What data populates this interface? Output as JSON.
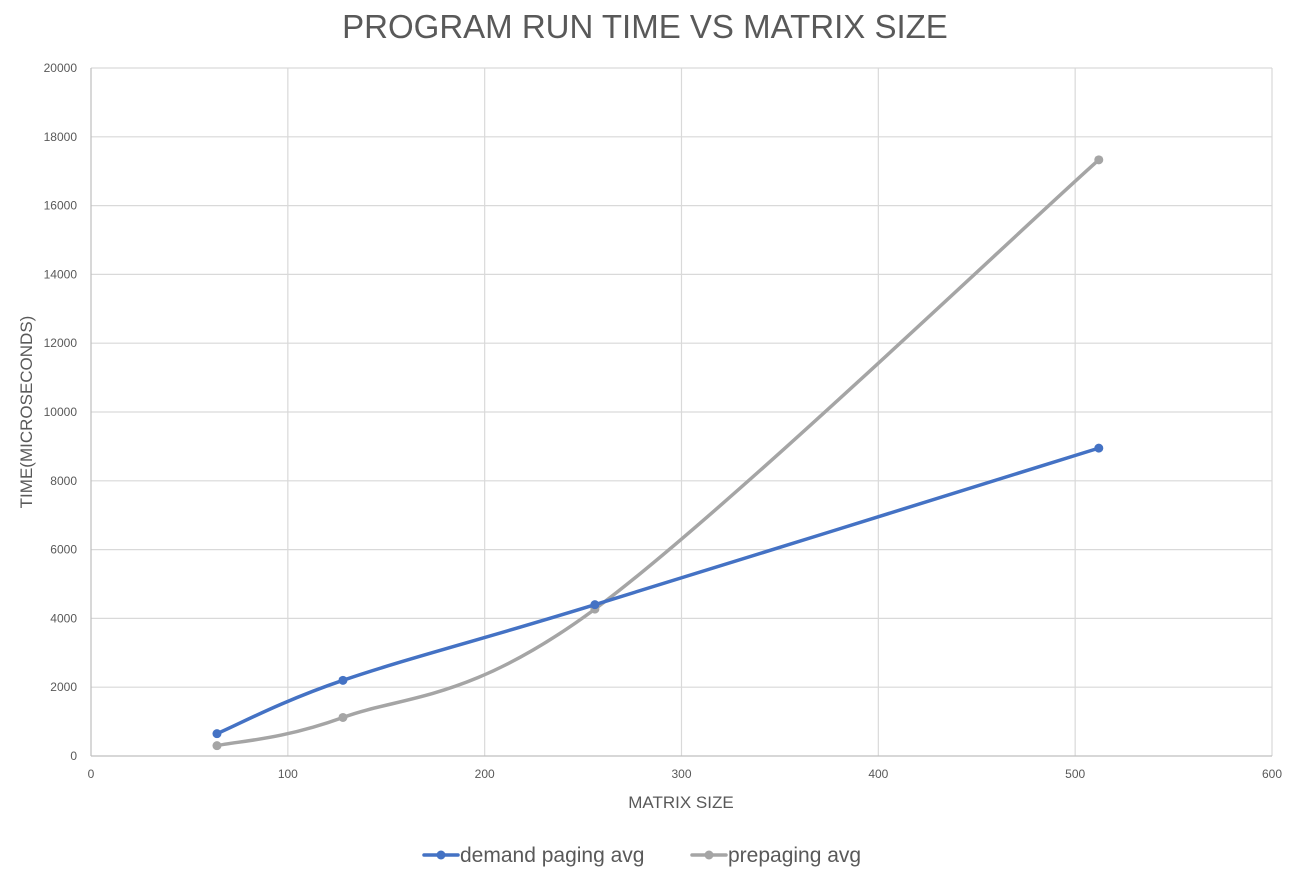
{
  "chart_data": {
    "type": "line",
    "title": "PROGRAM RUN TIME VS MATRIX SIZE",
    "xlabel": "MATRIX SIZE",
    "ylabel": "TIME(MICROSECONDS)",
    "xlim": [
      0,
      600
    ],
    "ylim": [
      0,
      20000
    ],
    "x_ticks": [
      0,
      100,
      200,
      300,
      400,
      500,
      600
    ],
    "y_ticks": [
      0,
      2000,
      4000,
      6000,
      8000,
      10000,
      12000,
      14000,
      16000,
      18000,
      20000
    ],
    "x_tick_labels": [
      "0",
      "100",
      "200",
      "300",
      "400",
      "500",
      "600"
    ],
    "y_tick_labels": [
      "0",
      "2000",
      "4000",
      "6000",
      "8000",
      "10000",
      "12000",
      "14000",
      "16000",
      "18000",
      "20000"
    ],
    "grid": true,
    "smooth": true,
    "legend_position": "bottom",
    "series": [
      {
        "name": "demand paging avg",
        "color": "#4472c4",
        "x": [
          64,
          128,
          256,
          512
        ],
        "y": [
          650,
          2200,
          4400,
          8950
        ]
      },
      {
        "name": "prepaging avg",
        "color": "#a5a5a5",
        "x": [
          64,
          128,
          256,
          512
        ],
        "y": [
          300,
          1120,
          4270,
          17330
        ]
      }
    ]
  }
}
